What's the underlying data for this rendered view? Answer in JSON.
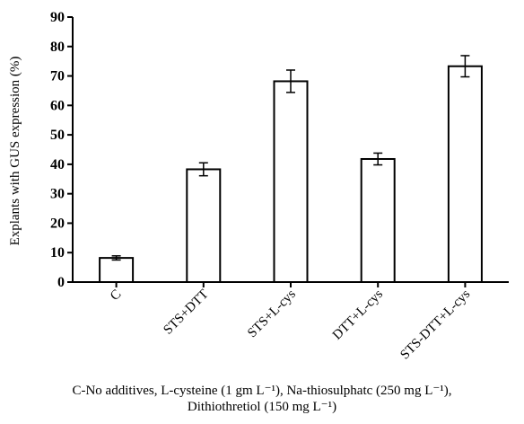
{
  "chart_data": {
    "type": "bar",
    "categories": [
      "C",
      "STS+DTT",
      "STS+L-cys",
      "DTT+L-cys",
      "STS-DTT+L-cys"
    ],
    "values": [
      8.2,
      38.3,
      68.2,
      41.8,
      73.3
    ],
    "errors": [
      0.7,
      2.2,
      3.8,
      2.0,
      3.6
    ],
    "title": "",
    "xlabel": "",
    "ylabel": "Explants with GUS expression (%)",
    "ylim": [
      0,
      90
    ],
    "yticks": [
      "0",
      "10",
      "20",
      "30",
      "40",
      "50",
      "60",
      "70",
      "80",
      "90"
    ],
    "grid": false,
    "bar_fill": "#ffffff",
    "bar_stroke": "#000000"
  },
  "caption": {
    "line1": "C-No additives, L-cysteine (1 gm L⁻¹), Na-thiosulphatc (250 mg L⁻¹),",
    "line2": "Dithiothretiol (150 mg L⁻¹)"
  }
}
